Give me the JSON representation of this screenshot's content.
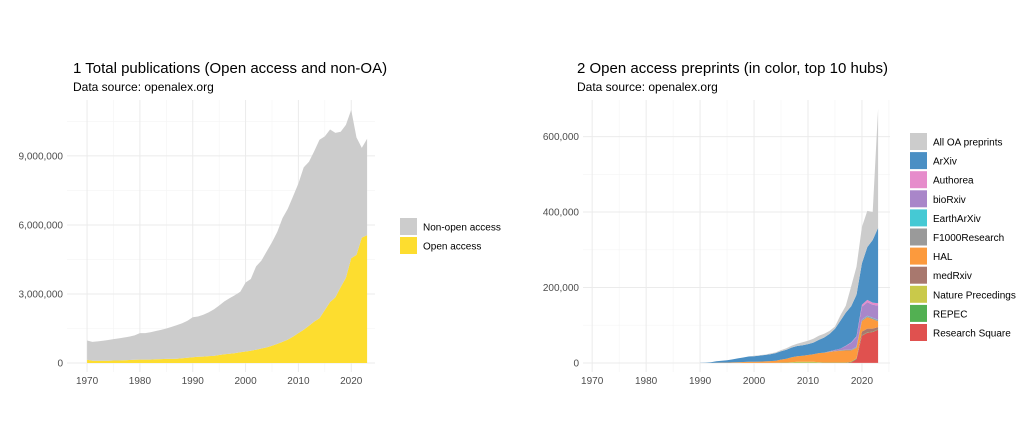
{
  "chart_data": [
    {
      "type": "area",
      "stacked": true,
      "title": "1 Total publications (Open access and non-OA)",
      "subtitle": "Data source: openalex.org",
      "xlabel": "",
      "ylabel": "",
      "xlim": [
        1966.2,
        2024.5
      ],
      "ylim": [
        -390000,
        11430000
      ],
      "xticks": [
        1970,
        1980,
        1990,
        2000,
        2010,
        2020
      ],
      "yticks": [
        0,
        3000000,
        6000000,
        9000000
      ],
      "ytick_labels": [
        "0",
        "3,000,000",
        "6,000,000",
        "9,000,000"
      ],
      "legend_position": "right",
      "x_start": 1970,
      "series": [
        {
          "name": "Open access",
          "color": "#FDDD2F",
          "values_millions": [
            0.14,
            0.1,
            0.1,
            0.1,
            0.1,
            0.11,
            0.11,
            0.12,
            0.13,
            0.14,
            0.15,
            0.15,
            0.15,
            0.16,
            0.17,
            0.18,
            0.18,
            0.19,
            0.21,
            0.23,
            0.25,
            0.27,
            0.28,
            0.3,
            0.31,
            0.35,
            0.38,
            0.4,
            0.43,
            0.47,
            0.5,
            0.53,
            0.58,
            0.63,
            0.68,
            0.75,
            0.83,
            0.92,
            1.02,
            1.15,
            1.3,
            1.45,
            1.62,
            1.8,
            1.95,
            2.3,
            2.65,
            2.85,
            3.3,
            3.7,
            4.55,
            4.7,
            5.45,
            5.55
          ]
        },
        {
          "name": "Non-open access",
          "color": "#CCCCCC",
          "total_millions": [
            0.98,
            0.92,
            0.94,
            0.97,
            1.0,
            1.04,
            1.07,
            1.11,
            1.15,
            1.2,
            1.3,
            1.3,
            1.34,
            1.39,
            1.44,
            1.5,
            1.57,
            1.65,
            1.73,
            1.84,
            1.99,
            2.02,
            2.1,
            2.2,
            2.33,
            2.5,
            2.68,
            2.82,
            2.95,
            3.1,
            3.5,
            3.65,
            4.2,
            4.45,
            4.85,
            5.25,
            5.7,
            6.3,
            6.7,
            7.25,
            7.8,
            8.5,
            8.75,
            9.2,
            9.7,
            9.85,
            10.15,
            10.0,
            10.05,
            10.35,
            11.0,
            9.8,
            9.35,
            9.75
          ]
        }
      ],
      "legend": [
        {
          "label": "Non-open access",
          "color": "#CCCCCC"
        },
        {
          "label": "Open access",
          "color": "#FDDD2F"
        }
      ]
    },
    {
      "type": "area",
      "stacked": true,
      "title": "2 Open access preprints (in color, top 10 hubs)",
      "subtitle": "Data source: openalex.org",
      "xlabel": "",
      "ylabel": "",
      "xlim": [
        1968.3,
        2025.2
      ],
      "ylim": [
        -24000,
        697000
      ],
      "xticks": [
        1970,
        1980,
        1990,
        2000,
        2010,
        2020
      ],
      "yticks": [
        0,
        200000,
        400000,
        600000
      ],
      "ytick_labels": [
        "0",
        "200,000",
        "400,000",
        "600,000"
      ],
      "legend_position": "right",
      "x_start": 1990,
      "units": "thousands",
      "stack_order_bottom_to_top": [
        "Research Square",
        "REPEC",
        "Nature Precedings",
        "medRxiv",
        "HAL",
        "F1000Research",
        "EarthArXiv",
        "bioRxiv",
        "Authorea",
        "ArXiv",
        "All OA preprints"
      ],
      "series": {
        "All OA preprints": {
          "color": "#CCCCCC",
          "values": [
            0,
            0,
            0,
            0,
            0,
            0,
            0,
            0,
            0,
            0,
            1,
            1,
            1,
            2,
            2,
            3,
            4,
            5,
            6,
            8,
            9,
            10,
            11,
            10,
            8,
            6,
            14,
            18,
            53,
            74,
            96,
            96,
            74,
            316
          ]
        },
        "ArXiv": {
          "color": "#4A8FC4",
          "values": [
            0.5,
            1,
            2,
            4,
            5,
            6,
            8,
            10,
            12,
            14,
            15,
            16,
            17,
            18,
            20,
            22,
            24,
            26,
            27,
            28,
            29,
            31,
            35,
            40,
            46,
            56,
            74,
            88,
            96,
            110,
            110,
            140,
            166,
            200
          ]
        },
        "Authorea": {
          "color": "#E68CCB",
          "values": [
            0,
            0,
            0,
            0,
            0,
            0,
            0,
            0,
            0,
            0,
            0,
            0,
            0,
            0,
            0,
            0,
            0,
            0,
            0,
            0,
            0,
            0,
            0,
            0,
            0,
            0,
            0,
            0.5,
            1,
            2,
            5,
            6,
            6,
            6
          ]
        },
        "bioRxiv": {
          "color": "#A986C9",
          "values": [
            0,
            0,
            0,
            0,
            0,
            0,
            0,
            0,
            0,
            0,
            0,
            0,
            0,
            0,
            0,
            0,
            0,
            0,
            0,
            0,
            0,
            0,
            0,
            0,
            1,
            2,
            4,
            10,
            18,
            26,
            34,
            36,
            34,
            38
          ]
        },
        "EarthArXiv": {
          "color": "#45C9D4",
          "values": [
            0,
            0,
            0,
            0,
            0,
            0,
            0,
            0,
            0,
            0,
            0,
            0,
            0,
            0,
            0,
            0,
            0,
            0,
            0,
            0,
            0,
            0,
            0,
            0,
            0,
            0,
            0,
            0,
            0.5,
            1,
            1,
            1,
            1,
            1
          ]
        },
        "F1000Research": {
          "color": "#9A9A9A",
          "values": [
            0,
            0,
            0,
            0,
            0,
            0,
            0,
            0,
            0,
            0,
            0,
            0,
            0,
            0,
            0,
            0,
            0,
            0,
            0,
            0,
            0,
            0,
            0,
            0.5,
            1,
            1.5,
            2,
            2,
            2,
            2,
            3,
            3,
            3,
            3
          ]
        },
        "HAL": {
          "color": "#FC9A3D",
          "values": [
            0,
            0,
            0,
            0.5,
            0.8,
            1,
            1.5,
            2,
            2.5,
            3,
            3,
            3.5,
            4,
            5,
            6,
            8,
            10,
            13,
            15,
            16,
            18,
            20,
            24,
            26,
            28,
            30,
            31,
            32,
            30,
            28,
            28,
            30,
            25,
            15
          ]
        },
        "medRxiv": {
          "color": "#A8786E",
          "values": [
            0,
            0,
            0,
            0,
            0,
            0,
            0,
            0,
            0,
            0,
            0,
            0,
            0,
            0,
            0,
            0,
            0,
            0,
            0,
            0,
            0,
            0,
            0,
            0,
            0,
            0,
            0,
            0,
            0,
            1,
            10,
            10,
            8,
            6
          ]
        },
        "Nature Precedings": {
          "color": "#C9C94A",
          "values": [
            0,
            0,
            0,
            0,
            0,
            0,
            0,
            0,
            0,
            0,
            0,
            0,
            0,
            0,
            0,
            0,
            0,
            1,
            2,
            2,
            2,
            2,
            1,
            0,
            0,
            0,
            0,
            0,
            0,
            0,
            0,
            0,
            0,
            0
          ]
        },
        "REPEC": {
          "color": "#52B052",
          "values": [
            0,
            0,
            0,
            0,
            0,
            0,
            0,
            0,
            0,
            0,
            0,
            0,
            0,
            0,
            0,
            1,
            1,
            1,
            1,
            1,
            1,
            1,
            1,
            1,
            1,
            1,
            1,
            1,
            1,
            1,
            1,
            1,
            1,
            1
          ]
        },
        "Research Square": {
          "color": "#E0514F",
          "values": [
            0,
            0,
            0,
            0,
            0,
            0,
            0,
            0,
            0,
            0,
            0,
            0,
            0,
            0,
            0,
            0,
            0,
            0,
            0,
            0,
            0,
            0,
            0,
            0,
            0,
            0,
            0,
            0,
            2,
            10,
            72,
            80,
            82,
            88
          ]
        }
      },
      "legend": [
        {
          "label": "All OA preprints",
          "color": "#CCCCCC"
        },
        {
          "label": "ArXiv",
          "color": "#4A8FC4"
        },
        {
          "label": "Authorea",
          "color": "#E68CCB"
        },
        {
          "label": "bioRxiv",
          "color": "#A986C9"
        },
        {
          "label": "EarthArXiv",
          "color": "#45C9D4"
        },
        {
          "label": "F1000Research",
          "color": "#9A9A9A"
        },
        {
          "label": "HAL",
          "color": "#FC9A3D"
        },
        {
          "label": "medRxiv",
          "color": "#A8786E"
        },
        {
          "label": "Nature Precedings",
          "color": "#C9C94A"
        },
        {
          "label": "REPEC",
          "color": "#52B052"
        },
        {
          "label": "Research Square",
          "color": "#E0514F"
        }
      ]
    }
  ]
}
